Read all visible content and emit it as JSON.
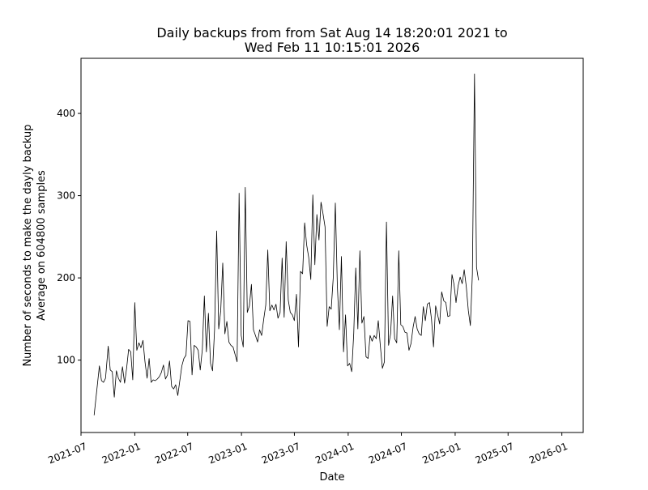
{
  "chart_data": {
    "type": "line",
    "title_lines": [
      "Daily backups from  from Sat Aug 14 18:20:01 2021 to",
      "Wed Feb 11 10:15:01 2026"
    ],
    "xlabel": "Date",
    "ylabel_lines": [
      "Number of seconds to make the dayly backup",
      "Average on 604800 samples"
    ],
    "xlim": [
      "2021-07-01",
      "2026-03-15"
    ],
    "ylim": [
      12,
      467
    ],
    "x_ticks": [
      {
        "date": "2021-07-01",
        "label": "2021-07"
      },
      {
        "date": "2022-01-01",
        "label": "2022-01"
      },
      {
        "date": "2022-07-01",
        "label": "2022-07"
      },
      {
        "date": "2023-01-01",
        "label": "2023-01"
      },
      {
        "date": "2023-07-01",
        "label": "2023-07"
      },
      {
        "date": "2024-01-01",
        "label": "2024-01"
      },
      {
        "date": "2024-07-01",
        "label": "2024-07"
      },
      {
        "date": "2025-01-01",
        "label": "2025-01"
      },
      {
        "date": "2025-07-01",
        "label": "2025-07"
      },
      {
        "date": "2026-01-01",
        "label": "2026-01"
      }
    ],
    "y_ticks": [
      100,
      200,
      300,
      400
    ],
    "grid": false,
    "series": [
      {
        "color": "#000000",
        "points": [
          [
            "2021-08-15",
            33
          ],
          [
            "2021-09-02",
            93
          ],
          [
            "2021-09-09",
            75
          ],
          [
            "2021-09-16",
            73
          ],
          [
            "2021-09-23",
            78
          ],
          [
            "2021-10-02",
            117
          ],
          [
            "2021-10-09",
            88
          ],
          [
            "2021-10-16",
            86
          ],
          [
            "2021-10-23",
            55
          ],
          [
            "2021-10-30",
            87
          ],
          [
            "2021-11-06",
            78
          ],
          [
            "2021-11-13",
            73
          ],
          [
            "2021-11-20",
            92
          ],
          [
            "2021-11-27",
            72
          ],
          [
            "2021-12-04",
            90
          ],
          [
            "2021-12-11",
            113
          ],
          [
            "2021-12-18",
            110
          ],
          [
            "2021-12-25",
            76
          ],
          [
            "2022-01-01",
            170
          ],
          [
            "2022-01-08",
            112
          ],
          [
            "2022-01-15",
            121
          ],
          [
            "2022-01-22",
            115
          ],
          [
            "2022-01-29",
            124
          ],
          [
            "2022-02-05",
            98
          ],
          [
            "2022-02-12",
            78
          ],
          [
            "2022-02-19",
            102
          ],
          [
            "2022-02-26",
            73
          ],
          [
            "2022-03-05",
            76
          ],
          [
            "2022-03-12",
            75
          ],
          [
            "2022-03-19",
            77
          ],
          [
            "2022-03-26",
            80
          ],
          [
            "2022-04-02",
            85
          ],
          [
            "2022-04-09",
            94
          ],
          [
            "2022-04-16",
            77
          ],
          [
            "2022-04-23",
            82
          ],
          [
            "2022-04-30",
            99
          ],
          [
            "2022-05-07",
            68
          ],
          [
            "2022-05-14",
            65
          ],
          [
            "2022-05-21",
            70
          ],
          [
            "2022-05-28",
            57
          ],
          [
            "2022-06-04",
            75
          ],
          [
            "2022-06-11",
            93
          ],
          [
            "2022-06-18",
            102
          ],
          [
            "2022-06-25",
            106
          ],
          [
            "2022-07-02",
            148
          ],
          [
            "2022-07-09",
            147
          ],
          [
            "2022-07-16",
            82
          ],
          [
            "2022-07-23",
            118
          ],
          [
            "2022-07-30",
            116
          ],
          [
            "2022-08-06",
            112
          ],
          [
            "2022-08-13",
            88
          ],
          [
            "2022-08-20",
            113
          ],
          [
            "2022-08-27",
            178
          ],
          [
            "2022-09-03",
            110
          ],
          [
            "2022-09-10",
            157
          ],
          [
            "2022-09-17",
            96
          ],
          [
            "2022-09-24",
            87
          ],
          [
            "2022-10-01",
            137
          ],
          [
            "2022-10-08",
            257
          ],
          [
            "2022-10-15",
            138
          ],
          [
            "2022-10-22",
            160
          ],
          [
            "2022-10-29",
            218
          ],
          [
            "2022-11-05",
            132
          ],
          [
            "2022-11-12",
            147
          ],
          [
            "2022-11-19",
            122
          ],
          [
            "2022-11-26",
            118
          ],
          [
            "2022-12-03",
            116
          ],
          [
            "2022-12-10",
            107
          ],
          [
            "2022-12-17",
            98
          ],
          [
            "2022-12-24",
            303
          ],
          [
            "2022-12-31",
            130
          ],
          [
            "2023-01-07",
            116
          ],
          [
            "2023-01-14",
            310
          ],
          [
            "2023-01-21",
            158
          ],
          [
            "2023-01-28",
            166
          ],
          [
            "2023-02-04",
            192
          ],
          [
            "2023-02-11",
            137
          ],
          [
            "2023-02-18",
            130
          ],
          [
            "2023-02-25",
            122
          ],
          [
            "2023-03-04",
            137
          ],
          [
            "2023-03-11",
            130
          ],
          [
            "2023-03-18",
            150
          ],
          [
            "2023-03-25",
            167
          ],
          [
            "2023-04-01",
            234
          ],
          [
            "2023-04-08",
            160
          ],
          [
            "2023-04-15",
            167
          ],
          [
            "2023-04-22",
            161
          ],
          [
            "2023-04-29",
            168
          ],
          [
            "2023-05-06",
            151
          ],
          [
            "2023-05-13",
            158
          ],
          [
            "2023-05-20",
            224
          ],
          [
            "2023-05-27",
            152
          ],
          [
            "2023-06-03",
            244
          ],
          [
            "2023-06-10",
            173
          ],
          [
            "2023-06-17",
            158
          ],
          [
            "2023-06-24",
            155
          ],
          [
            "2023-07-01",
            148
          ],
          [
            "2023-07-08",
            180
          ],
          [
            "2023-07-15",
            116
          ],
          [
            "2023-07-22",
            208
          ],
          [
            "2023-07-29",
            205
          ],
          [
            "2023-08-05",
            267
          ],
          [
            "2023-08-12",
            240
          ],
          [
            "2023-08-19",
            225
          ],
          [
            "2023-08-26",
            198
          ],
          [
            "2023-09-02",
            301
          ],
          [
            "2023-09-09",
            216
          ],
          [
            "2023-09-16",
            277
          ],
          [
            "2023-09-23",
            246
          ],
          [
            "2023-09-30",
            292
          ],
          [
            "2023-10-07",
            278
          ],
          [
            "2023-10-14",
            262
          ],
          [
            "2023-10-21",
            141
          ],
          [
            "2023-10-28",
            165
          ],
          [
            "2023-11-04",
            162
          ],
          [
            "2023-11-11",
            200
          ],
          [
            "2023-11-18",
            291
          ],
          [
            "2023-11-25",
            190
          ],
          [
            "2023-12-02",
            137
          ],
          [
            "2023-12-09",
            226
          ],
          [
            "2023-12-16",
            110
          ],
          [
            "2023-12-23",
            155
          ],
          [
            "2023-12-30",
            93
          ],
          [
            "2024-01-06",
            96
          ],
          [
            "2024-01-13",
            86
          ],
          [
            "2024-01-20",
            132
          ],
          [
            "2024-01-27",
            212
          ],
          [
            "2024-02-03",
            138
          ],
          [
            "2024-02-10",
            233
          ],
          [
            "2024-02-17",
            145
          ],
          [
            "2024-02-24",
            153
          ],
          [
            "2024-03-02",
            104
          ],
          [
            "2024-03-09",
            102
          ],
          [
            "2024-03-16",
            130
          ],
          [
            "2024-03-23",
            123
          ],
          [
            "2024-03-30",
            130
          ],
          [
            "2024-04-06",
            126
          ],
          [
            "2024-04-13",
            148
          ],
          [
            "2024-04-20",
            118
          ],
          [
            "2024-04-27",
            90
          ],
          [
            "2024-05-04",
            98
          ],
          [
            "2024-05-11",
            268
          ],
          [
            "2024-05-18",
            118
          ],
          [
            "2024-05-25",
            132
          ],
          [
            "2024-06-01",
            178
          ],
          [
            "2024-06-08",
            126
          ],
          [
            "2024-06-15",
            121
          ],
          [
            "2024-06-22",
            233
          ],
          [
            "2024-06-29",
            143
          ],
          [
            "2024-07-06",
            141
          ],
          [
            "2024-07-13",
            134
          ],
          [
            "2024-07-20",
            133
          ],
          [
            "2024-07-27",
            112
          ],
          [
            "2024-08-03",
            120
          ],
          [
            "2024-08-10",
            140
          ],
          [
            "2024-08-17",
            153
          ],
          [
            "2024-08-24",
            138
          ],
          [
            "2024-08-31",
            132
          ],
          [
            "2024-09-07",
            130
          ],
          [
            "2024-09-14",
            165
          ],
          [
            "2024-09-21",
            148
          ],
          [
            "2024-09-28",
            168
          ],
          [
            "2024-10-05",
            170
          ],
          [
            "2024-10-12",
            150
          ],
          [
            "2024-10-19",
            116
          ],
          [
            "2024-10-26",
            166
          ],
          [
            "2024-11-02",
            155
          ],
          [
            "2024-11-09",
            144
          ],
          [
            "2024-11-16",
            183
          ],
          [
            "2024-11-23",
            172
          ],
          [
            "2024-11-30",
            170
          ],
          [
            "2024-12-07",
            153
          ],
          [
            "2024-12-14",
            154
          ],
          [
            "2024-12-21",
            204
          ],
          [
            "2024-12-28",
            192
          ],
          [
            "2025-01-04",
            170
          ],
          [
            "2025-01-11",
            190
          ],
          [
            "2025-01-18",
            201
          ],
          [
            "2025-01-25",
            193
          ],
          [
            "2025-02-01",
            210
          ],
          [
            "2025-02-08",
            190
          ],
          [
            "2025-02-15",
            160
          ],
          [
            "2025-02-22",
            142
          ],
          [
            "2025-03-01",
            205
          ],
          [
            "2025-03-08",
            448
          ],
          [
            "2025-03-15",
            213
          ],
          [
            "2025-03-22",
            197
          ]
        ]
      }
    ]
  }
}
